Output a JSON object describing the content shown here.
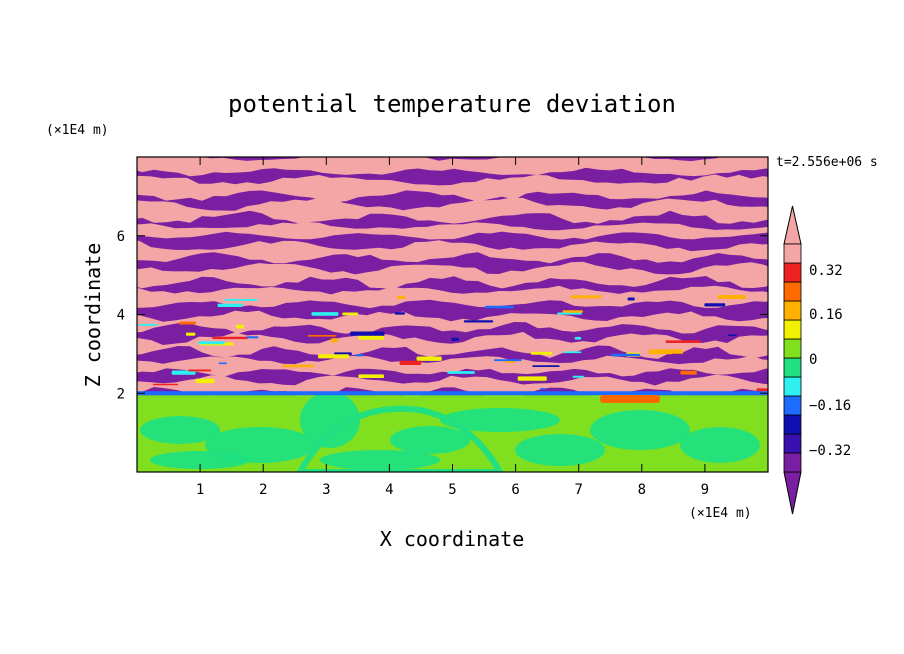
{
  "chart_data": {
    "type": "heatmap",
    "title": "potential temperature deviation",
    "xlabel": "X coordinate",
    "ylabel": "Z coordinate",
    "x_unit_label": "(×1E4 m)",
    "y_unit_label": "(×1E4 m)",
    "time_label": "t=2.556e+06 s",
    "xlim": [
      0,
      10
    ],
    "ylim": [
      0,
      8
    ],
    "x_ticks": [
      "1",
      "2",
      "3",
      "4",
      "5",
      "6",
      "7",
      "8",
      "9"
    ],
    "y_ticks": [
      "2",
      "4",
      "6"
    ],
    "colorbar": {
      "levels": [
        {
          "color": "#7b1fa2"
        },
        {
          "color": "#3a0fb0"
        },
        {
          "color": "#1010b0"
        },
        {
          "color": "#1e6bff"
        },
        {
          "color": "#2ef0f0"
        },
        {
          "color": "#20e080"
        },
        {
          "color": "#80e020"
        },
        {
          "color": "#f0f000"
        },
        {
          "color": "#ffb000"
        },
        {
          "color": "#ff6a00"
        },
        {
          "color": "#ee2222"
        },
        {
          "color": "#f4a6a6"
        }
      ],
      "tick_labels": [
        "0.32",
        "0.16",
        "0",
        "−0.16",
        "−0.32"
      ],
      "extend": "both"
    }
  }
}
